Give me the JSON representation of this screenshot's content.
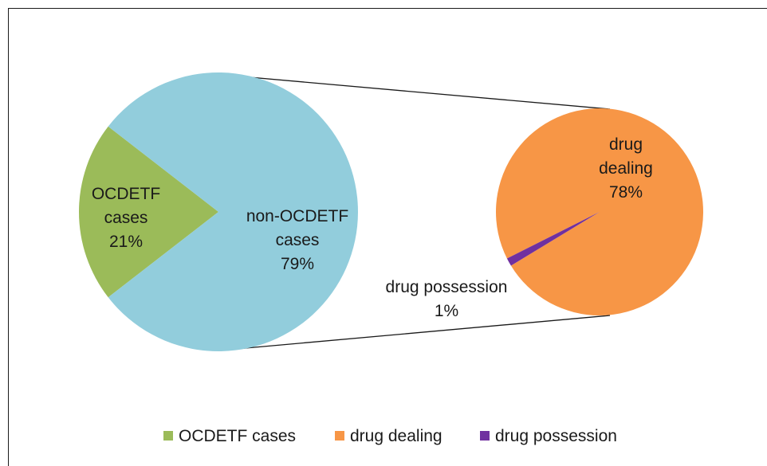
{
  "chart_data": {
    "type": "bar-of-pie",
    "main_pie": {
      "slices": [
        {
          "name": "OCDETF cases",
          "value": 21,
          "label_lines": [
            "OCDETF",
            "cases",
            "21%"
          ],
          "color": "#9bbb59"
        },
        {
          "name": "non-OCDETF cases",
          "value": 79,
          "label_lines": [
            "non-OCDETF",
            "cases",
            "79%"
          ],
          "color": "#92cddc"
        }
      ]
    },
    "secondary_pie": {
      "slices": [
        {
          "name": "drug dealing",
          "value": 78,
          "label_lines": [
            "drug",
            "dealing",
            "78%"
          ],
          "color": "#f79646"
        },
        {
          "name": "drug possession",
          "value": 1,
          "label_lines": [
            "drug possession",
            "1%"
          ],
          "color": "#7030a0"
        }
      ]
    },
    "legend": {
      "placement": "bottom",
      "entries": [
        {
          "label": "OCDETF cases",
          "color": "#9bbb59"
        },
        {
          "label": "drug dealing",
          "color": "#f79646"
        },
        {
          "label": "drug possession",
          "color": "#7030a0"
        }
      ]
    }
  }
}
